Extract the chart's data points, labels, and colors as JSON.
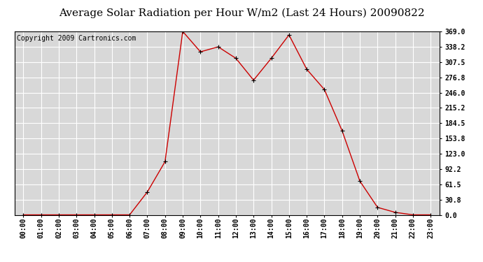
{
  "title": "Average Solar Radiation per Hour W/m2 (Last 24 Hours) 20090822",
  "copyright": "Copyright 2009 Cartronics.com",
  "hours": [
    "00:00",
    "01:00",
    "02:00",
    "03:00",
    "04:00",
    "05:00",
    "06:00",
    "07:00",
    "08:00",
    "09:00",
    "10:00",
    "11:00",
    "12:00",
    "13:00",
    "14:00",
    "15:00",
    "16:00",
    "17:00",
    "18:00",
    "19:00",
    "20:00",
    "21:00",
    "22:00",
    "23:00"
  ],
  "values": [
    0,
    0,
    0,
    0,
    0,
    0,
    0,
    46,
    107,
    369,
    328,
    338,
    315,
    271,
    315,
    362,
    293,
    252,
    169,
    68,
    15,
    5,
    0,
    0
  ],
  "yticks": [
    0.0,
    30.8,
    61.5,
    92.2,
    123.0,
    153.8,
    184.5,
    215.2,
    246.0,
    276.8,
    307.5,
    338.2,
    369.0
  ],
  "line_color": "#cc0000",
  "marker": "+",
  "marker_color": "#000000",
  "bg_color": "#ffffff",
  "plot_bg_color": "#d8d8d8",
  "grid_color": "#ffffff",
  "title_fontsize": 11,
  "copyright_fontsize": 7,
  "tick_fontsize": 7,
  "ylim": [
    0,
    369.0
  ],
  "xlim": [
    -0.5,
    23.5
  ]
}
